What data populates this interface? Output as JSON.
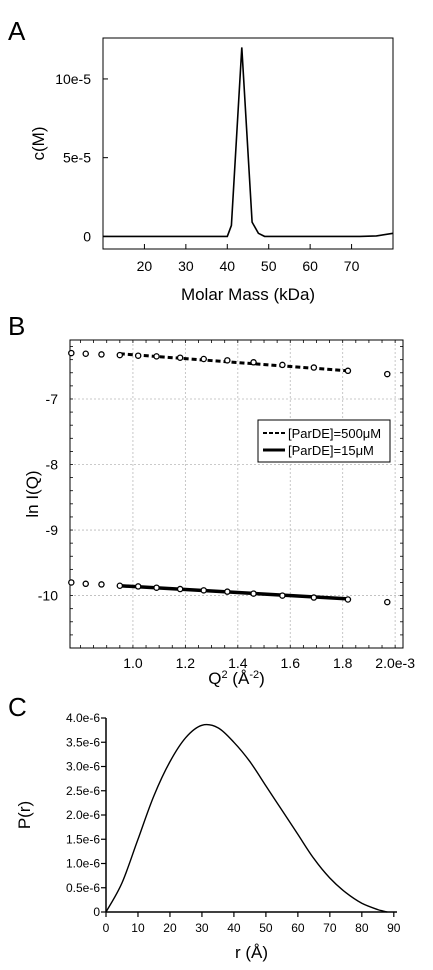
{
  "chart_data": [
    {
      "panel": "A",
      "type": "line",
      "xlabel": "Molar Mass (kDa)",
      "ylabel": "c(M)",
      "xlim": [
        10,
        80
      ],
      "ylim": [
        -8e-06,
        0.000126
      ],
      "xticks": [
        20,
        30,
        40,
        50,
        60,
        70
      ],
      "xtick_labels": [
        "20",
        "30",
        "40",
        "50",
        "60",
        "70"
      ],
      "yticks": [
        0,
        5e-05,
        0.0001
      ],
      "ytick_labels": [
        "0",
        "5e-5",
        "10e-5"
      ],
      "grid": false,
      "series": [
        {
          "color": "#000000",
          "points": [
            [
              10,
              0
            ],
            [
              38,
              0
            ],
            [
              40,
              0
            ],
            [
              41,
              7e-06
            ],
            [
              43.5,
              0.00012
            ],
            [
              46,
              9e-06
            ],
            [
              47.5,
              2e-06
            ],
            [
              49,
              0
            ],
            [
              60,
              0
            ],
            [
              72,
              0
            ],
            [
              76,
              3e-07
            ],
            [
              80,
              2e-06
            ]
          ]
        }
      ]
    },
    {
      "panel": "B",
      "type": "scatter",
      "xlabel_base": "Q",
      "xlabel_sup": "2",
      "xlabel_rest": " (Å",
      "xlabel_sup2": "-2",
      "xlabel_end": ")",
      "ylabel": "ln I(Q)",
      "xlim": [
        0.00076,
        0.00203
      ],
      "ylim": [
        -10.8,
        -6.1
      ],
      "xticks": [
        0.001,
        0.0012,
        0.0014,
        0.0016,
        0.0018,
        0.002
      ],
      "xtick_labels": [
        "1.0",
        "1.2",
        "1.4",
        "1.6",
        "1.8",
        "2.0e-3"
      ],
      "yticks": [
        -7,
        -8,
        -9,
        -10
      ],
      "ytick_labels": [
        "-7",
        "-8",
        "-9",
        "-10"
      ],
      "grid": true,
      "legend_position": "right",
      "series": [
        {
          "name": "[ParDE]=500μM",
          "style": "dashed",
          "points": [
            [
              0.000765,
              -6.3
            ],
            [
              0.00082,
              -6.31
            ],
            [
              0.00088,
              -6.32
            ],
            [
              0.00095,
              -6.33
            ],
            [
              0.00102,
              -6.34
            ],
            [
              0.00109,
              -6.35
            ],
            [
              0.00118,
              -6.37
            ],
            [
              0.00127,
              -6.39
            ],
            [
              0.00136,
              -6.41
            ],
            [
              0.00146,
              -6.44
            ],
            [
              0.00157,
              -6.48
            ],
            [
              0.00169,
              -6.52
            ],
            [
              0.00182,
              -6.57
            ],
            [
              0.00197,
              -6.62
            ]
          ],
          "fit_x": [
            0.00095,
            0.00182
          ],
          "fit_y": [
            -6.31,
            -6.57
          ]
        },
        {
          "name": "[ParDE]=15μM",
          "style": "solid",
          "points": [
            [
              0.000765,
              -9.8
            ],
            [
              0.00082,
              -9.82
            ],
            [
              0.00088,
              -9.83
            ],
            [
              0.00095,
              -9.85
            ],
            [
              0.00102,
              -9.86
            ],
            [
              0.00109,
              -9.88
            ],
            [
              0.00118,
              -9.9
            ],
            [
              0.00127,
              -9.92
            ],
            [
              0.00136,
              -9.94
            ],
            [
              0.00146,
              -9.97
            ],
            [
              0.00157,
              -10.0
            ],
            [
              0.00169,
              -10.03
            ],
            [
              0.00182,
              -10.06
            ],
            [
              0.00197,
              -10.1
            ]
          ],
          "fit_x": [
            0.00095,
            0.00182
          ],
          "fit_y": [
            -9.85,
            -10.05
          ]
        }
      ]
    },
    {
      "panel": "C",
      "type": "line",
      "xlabel": "r (Å)",
      "ylabel": "P(r)",
      "xlim": [
        0,
        91
      ],
      "ylim": [
        0,
        4e-06
      ],
      "xticks": [
        0,
        10,
        20,
        30,
        40,
        50,
        60,
        70,
        80,
        90
      ],
      "xtick_labels": [
        "0",
        "10",
        "20",
        "30",
        "40",
        "50",
        "60",
        "70",
        "80",
        "90"
      ],
      "yticks": [
        0,
        5e-07,
        1e-06,
        1.5e-06,
        2e-06,
        2.5e-06,
        3e-06,
        3.5e-06,
        4e-06
      ],
      "ytick_labels": [
        "0",
        "0.5e-6",
        "1.0e-6",
        "1.5e-6",
        "2.0e-6",
        "2.5e-6",
        "3.0e-6",
        "3.5e-6",
        "4.0e-6"
      ],
      "grid": false,
      "series": [
        {
          "color": "#000000",
          "points": [
            [
              0,
              0
            ],
            [
              5,
              6e-07
            ],
            [
              10,
              1.5e-06
            ],
            [
              15,
              2.4e-06
            ],
            [
              20,
              3.1e-06
            ],
            [
              25,
              3.6e-06
            ],
            [
              30,
              3.85e-06
            ],
            [
              35,
              3.8e-06
            ],
            [
              40,
              3.5e-06
            ],
            [
              45,
              3.1e-06
            ],
            [
              50,
              2.6e-06
            ],
            [
              55,
              2.1e-06
            ],
            [
              60,
              1.6e-06
            ],
            [
              65,
              1.1e-06
            ],
            [
              70,
              7e-07
            ],
            [
              75,
              4e-07
            ],
            [
              80,
              1.8e-07
            ],
            [
              85,
              5e-08
            ],
            [
              88,
              0
            ]
          ]
        }
      ]
    }
  ]
}
